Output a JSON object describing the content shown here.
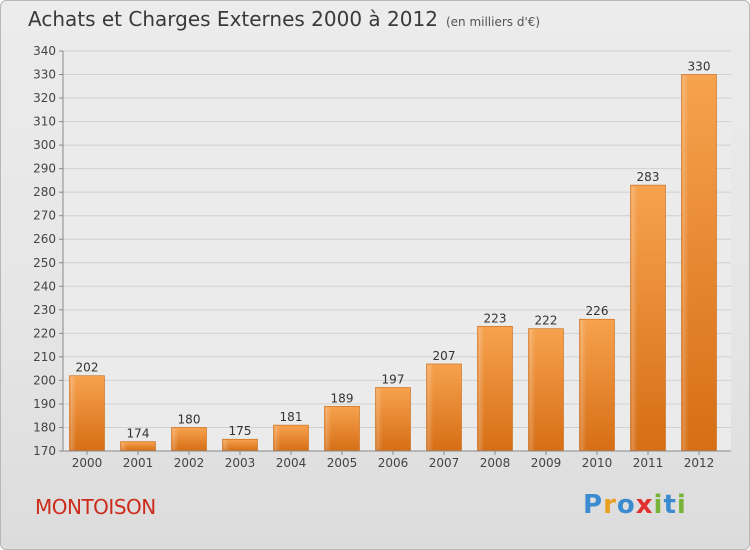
{
  "chart_data": {
    "type": "bar",
    "title": "Achats et Charges Externes 2000 à 2012",
    "subtitle": "(en milliers d'€)",
    "categories": [
      "2000",
      "2001",
      "2002",
      "2003",
      "2004",
      "2005",
      "2006",
      "2007",
      "2008",
      "2009",
      "2010",
      "2011",
      "2012"
    ],
    "values": [
      202,
      174,
      180,
      175,
      181,
      189,
      197,
      207,
      223,
      222,
      226,
      283,
      330
    ],
    "ylim": [
      170,
      340
    ],
    "yticks": [
      170,
      180,
      190,
      200,
      210,
      220,
      230,
      240,
      250,
      260,
      270,
      280,
      290,
      300,
      310,
      320,
      330,
      340
    ],
    "grid": true,
    "bar_color": "#f0913a",
    "xlabel": "",
    "ylabel": ""
  },
  "footer": {
    "town": "MONTOISON",
    "town_color": "#cc2c1c",
    "logo_letters": [
      {
        "ch": "P",
        "color": "#3b8bd0"
      },
      {
        "ch": "r",
        "color": "#e8a020"
      },
      {
        "ch": "o",
        "color": "#3b8bd0"
      },
      {
        "ch": "x",
        "color": "#e03030"
      },
      {
        "ch": "i",
        "color": "#7ab33a"
      },
      {
        "ch": "t",
        "color": "#3b8bd0"
      },
      {
        "ch": "i",
        "color": "#7ab33a"
      }
    ]
  }
}
